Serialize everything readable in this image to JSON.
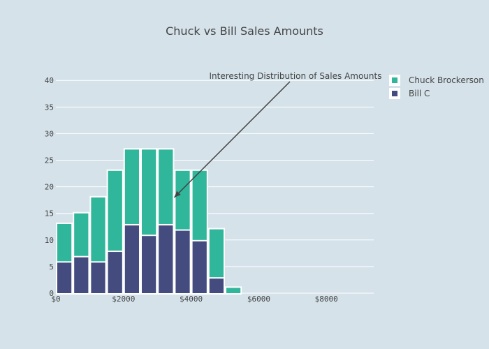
{
  "chart_data": {
    "type": "bar",
    "title": "Chuck vs Bill Sales Amounts",
    "barmode": "stack",
    "xlabel": "",
    "ylabel": "",
    "x": [
      250,
      750,
      1250,
      1750,
      2250,
      2750,
      3250,
      3750,
      4250,
      4750,
      5250
    ],
    "xlim": [
      0,
      9400
    ],
    "ylim": [
      0,
      42
    ],
    "xticks": [
      0,
      2000,
      4000,
      6000,
      8000
    ],
    "xtick_labels": [
      "$0",
      "$2000",
      "$4000",
      "$6000",
      "$8000"
    ],
    "yticks": [
      0,
      5,
      10,
      15,
      20,
      25,
      30,
      35,
      40
    ],
    "ytick_labels": [
      "0",
      "5",
      "10",
      "15",
      "20",
      "25",
      "30",
      "35",
      "40"
    ],
    "grid": true,
    "legend_position": "top-right",
    "series": [
      {
        "name": "Bill C",
        "color": "#434b7f",
        "values": [
          6,
          7,
          6,
          8,
          13,
          11,
          13,
          12,
          10,
          3,
          0
        ]
      },
      {
        "name": "Chuck Brockerson",
        "color": "#2fb69b",
        "values": [
          7,
          8,
          12,
          15,
          14,
          16,
          14,
          11,
          13,
          9,
          1
        ]
      }
    ],
    "annotation": {
      "text": "Interesting Distribution of Sales Amounts",
      "x": 3500,
      "y": 18
    }
  }
}
